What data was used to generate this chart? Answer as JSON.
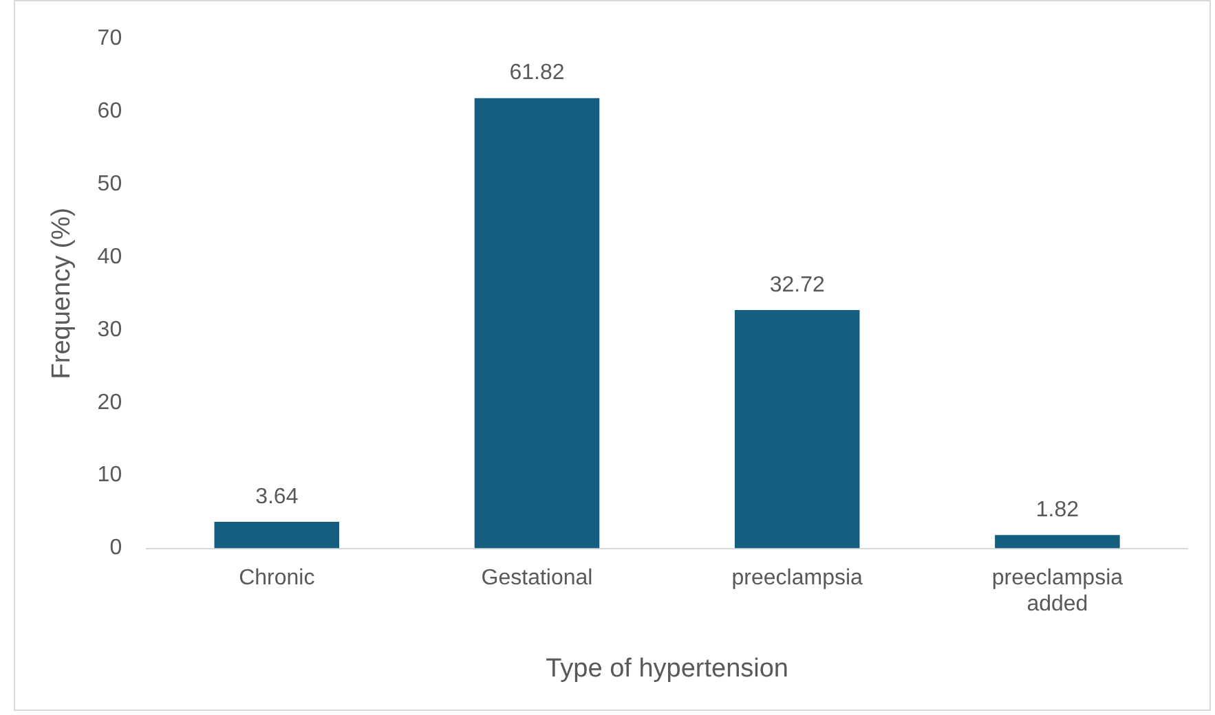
{
  "chart_data": {
    "type": "bar",
    "xlabel": "Type of hypertension",
    "ylabel": "Frequency (%)",
    "categories": [
      "Chronic",
      "Gestational",
      "preeclampsia",
      "preeclampsia added"
    ],
    "values": [
      3.64,
      61.82,
      32.72,
      1.82
    ],
    "color": "#145e7f",
    "ylim": [
      0,
      70
    ],
    "yticks": [
      0,
      10,
      20,
      30,
      40,
      50,
      60,
      70
    ],
    "grid": false,
    "data_labels": true
  }
}
